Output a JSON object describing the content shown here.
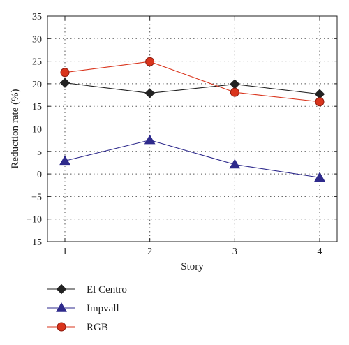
{
  "chart_data": {
    "type": "line",
    "xlabel": "Story",
    "ylabel": "Reduction rate (%)",
    "x": [
      1,
      2,
      3,
      4
    ],
    "xlim": [
      1,
      4
    ],
    "ylim": [
      -15,
      35
    ],
    "xticks": [
      "1",
      "2",
      "3",
      "4"
    ],
    "yticks": [
      "−15",
      "−10",
      "−5",
      "0",
      "5",
      "10",
      "15",
      "20",
      "25",
      "30",
      "35"
    ],
    "grid": true,
    "legend_position": "bottom-left, below plot",
    "series": [
      {
        "name": "El Centro",
        "marker": "diamond",
        "color": "#222222",
        "values": [
          20.2,
          17.9,
          19.9,
          17.7
        ]
      },
      {
        "name": "Impvall",
        "marker": "triangle",
        "color": "#2e2a8c",
        "values": [
          2.9,
          7.5,
          2.1,
          -0.8
        ]
      },
      {
        "name": "RGB",
        "marker": "circle",
        "color": "#d9341c",
        "values": [
          22.5,
          24.9,
          18.1,
          16.0
        ]
      }
    ]
  }
}
